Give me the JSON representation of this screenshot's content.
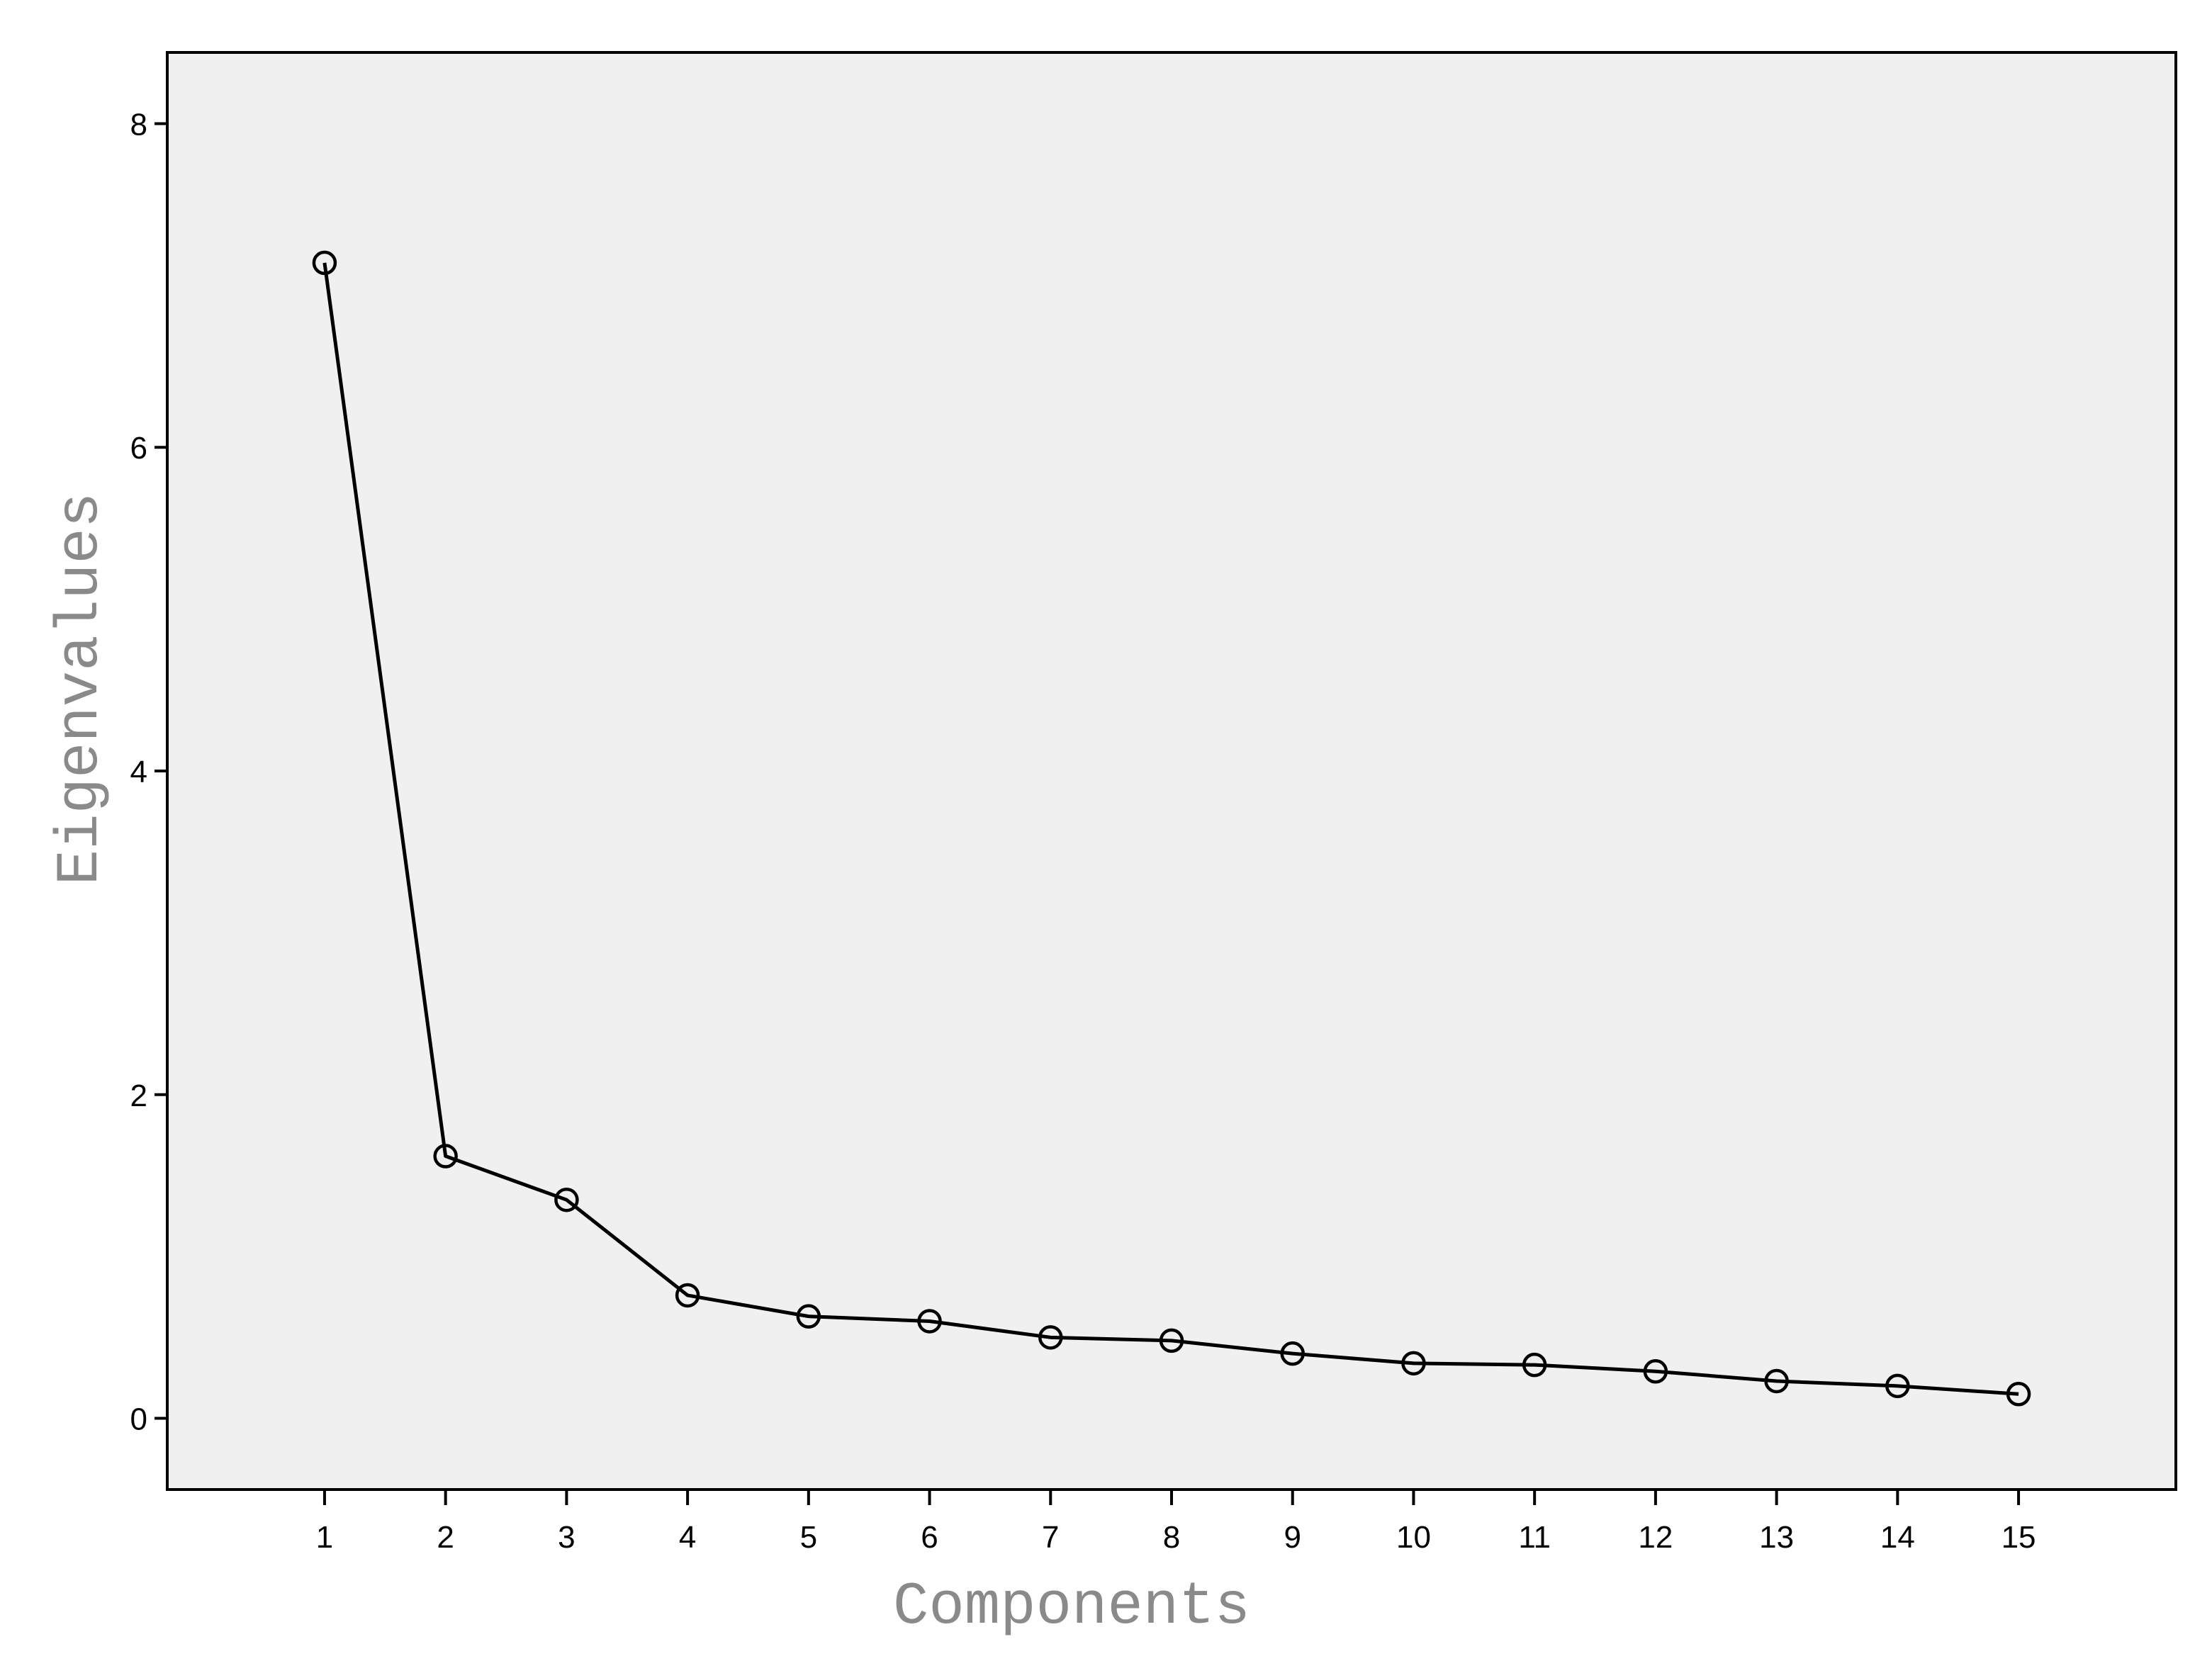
{
  "chart_data": {
    "type": "line",
    "title": "",
    "xlabel": "Components",
    "ylabel": "Eigenvalues",
    "x": [
      1,
      2,
      3,
      4,
      5,
      6,
      7,
      8,
      9,
      10,
      11,
      12,
      13,
      14,
      15
    ],
    "x_tick_labels": [
      "1",
      "2",
      "3",
      "4",
      "5",
      "6",
      "7",
      "8",
      "9",
      "10",
      "11",
      "12",
      "13",
      "14",
      "15"
    ],
    "series": [
      {
        "values": [
          7.14,
          1.62,
          1.35,
          0.76,
          0.63,
          0.6,
          0.5,
          0.48,
          0.4,
          0.34,
          0.33,
          0.29,
          0.23,
          0.2,
          0.15
        ],
        "marker": "open-circle",
        "color": "#000000"
      }
    ],
    "y_ticks": [
      0,
      2,
      4,
      6,
      8
    ],
    "y_tick_labels": [
      "0",
      "2",
      "4",
      "6",
      "8"
    ],
    "xlim": [
      -0.3,
      16.3
    ],
    "ylim": [
      -0.44,
      8.44
    ],
    "grid": false,
    "legend": "none",
    "plot_background": "#f0f0f0",
    "axis_title_color": "#8a8a8a"
  }
}
